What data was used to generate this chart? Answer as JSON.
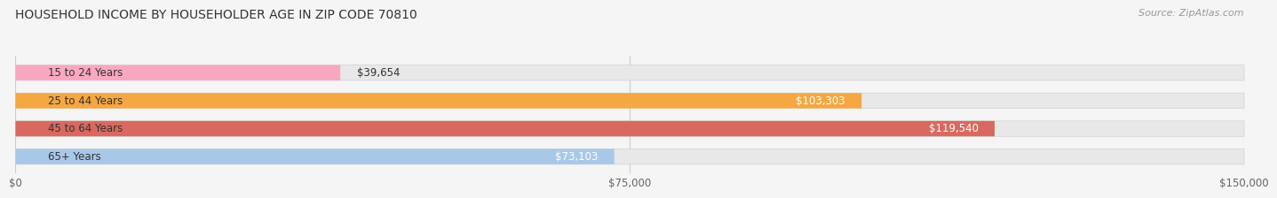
{
  "title": "HOUSEHOLD INCOME BY HOUSEHOLDER AGE IN ZIP CODE 70810",
  "source": "Source: ZipAtlas.com",
  "categories": [
    "15 to 24 Years",
    "25 to 44 Years",
    "45 to 64 Years",
    "65+ Years"
  ],
  "values": [
    39654,
    103303,
    119540,
    73103
  ],
  "bar_colors": [
    "#f9a8c0",
    "#f5a742",
    "#d9695f",
    "#a8c8e8"
  ],
  "label_colors": [
    "#555555",
    "#ffffff",
    "#ffffff",
    "#555555"
  ],
  "labels": [
    "$39,654",
    "$103,303",
    "$119,540",
    "$73,103"
  ],
  "xlim": [
    0,
    150000
  ],
  "xticks": [
    0,
    75000,
    150000
  ],
  "xticklabels": [
    "$0",
    "$75,000",
    "$150,000"
  ],
  "bar_height": 0.55,
  "background_color": "#f5f5f5",
  "title_fontsize": 10,
  "source_fontsize": 8
}
